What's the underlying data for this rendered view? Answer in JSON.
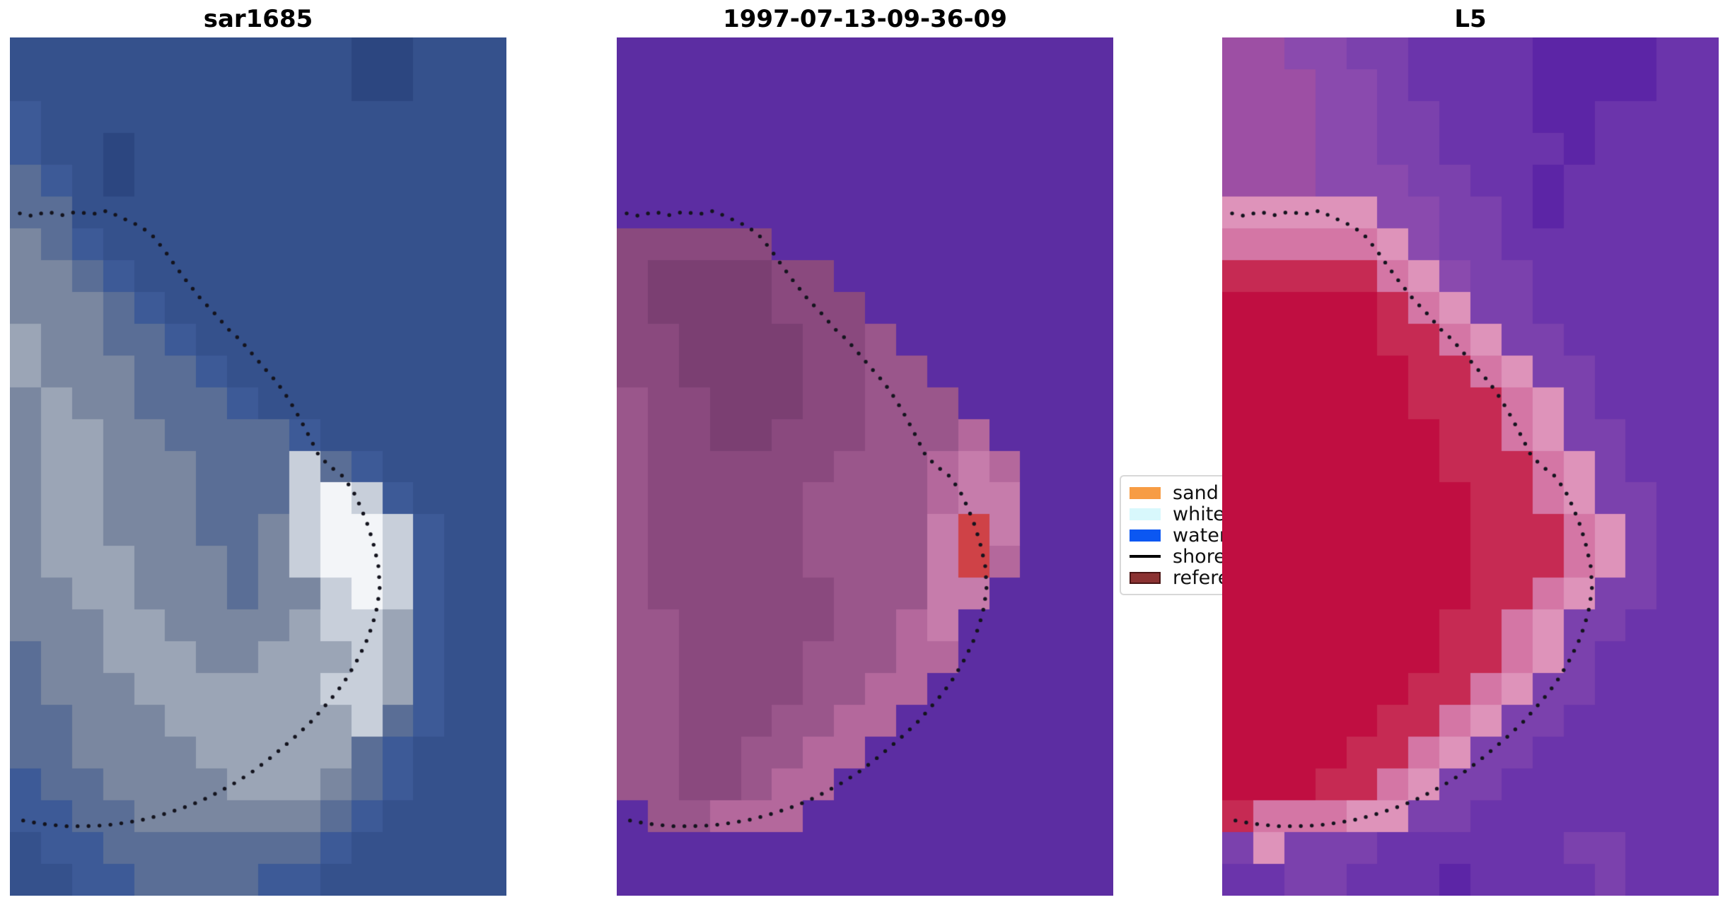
{
  "figure": {
    "background": "#ffffff",
    "shoreline_dot_color": "#14141e",
    "shoreline_dot_radius": 2.7,
    "shoreline_dot_spacing": 15.5
  },
  "legend": {
    "entries": [
      {
        "label": "sand",
        "type": "patch",
        "color": "#f79c44"
      },
      {
        "label": "whitewater",
        "type": "patch",
        "color": "#d8f8fc"
      },
      {
        "label": "water",
        "type": "patch",
        "color": "#0b57f2"
      },
      {
        "label": "shoreline",
        "type": "line",
        "color": "#000000"
      },
      {
        "label": "reference",
        "type": "patch",
        "color": "#8b3232",
        "border": "#4a1515"
      }
    ]
  },
  "shoreline": {
    "style": "dotted",
    "color": "#14141e",
    "points": [
      [
        0.02,
        0.205
      ],
      [
        0.045,
        0.208
      ],
      [
        0.075,
        0.203
      ],
      [
        0.105,
        0.207
      ],
      [
        0.135,
        0.203
      ],
      [
        0.165,
        0.206
      ],
      [
        0.195,
        0.202
      ],
      [
        0.225,
        0.21
      ],
      [
        0.255,
        0.218
      ],
      [
        0.283,
        0.228
      ],
      [
        0.31,
        0.247
      ],
      [
        0.333,
        0.266
      ],
      [
        0.356,
        0.284
      ],
      [
        0.385,
        0.305
      ],
      [
        0.413,
        0.322
      ],
      [
        0.44,
        0.34
      ],
      [
        0.463,
        0.352
      ],
      [
        0.487,
        0.368
      ],
      [
        0.512,
        0.385
      ],
      [
        0.538,
        0.402
      ],
      [
        0.562,
        0.422
      ],
      [
        0.583,
        0.443
      ],
      [
        0.603,
        0.465
      ],
      [
        0.622,
        0.487
      ],
      [
        0.645,
        0.5
      ],
      [
        0.668,
        0.51
      ],
      [
        0.69,
        0.527
      ],
      [
        0.707,
        0.548
      ],
      [
        0.722,
        0.57
      ],
      [
        0.733,
        0.592
      ],
      [
        0.742,
        0.615
      ],
      [
        0.745,
        0.64
      ],
      [
        0.74,
        0.663
      ],
      [
        0.73,
        0.685
      ],
      [
        0.717,
        0.705
      ],
      [
        0.7,
        0.725
      ],
      [
        0.68,
        0.745
      ],
      [
        0.658,
        0.763
      ],
      [
        0.633,
        0.78
      ],
      [
        0.607,
        0.797
      ],
      [
        0.578,
        0.813
      ],
      [
        0.548,
        0.828
      ],
      [
        0.517,
        0.843
      ],
      [
        0.485,
        0.857
      ],
      [
        0.452,
        0.869
      ],
      [
        0.418,
        0.88
      ],
      [
        0.383,
        0.89
      ],
      [
        0.347,
        0.898
      ],
      [
        0.31,
        0.905
      ],
      [
        0.272,
        0.911
      ],
      [
        0.233,
        0.915
      ],
      [
        0.193,
        0.918
      ],
      [
        0.153,
        0.919
      ],
      [
        0.113,
        0.919
      ],
      [
        0.075,
        0.917
      ],
      [
        0.04,
        0.914
      ],
      [
        0.015,
        0.911
      ]
    ]
  },
  "chart_data": [
    {
      "type": "heatmap",
      "title": "sar1685",
      "description": "pixelated SAR backscatter image, blue water with gray/white land blob, dotted shoreline overlay",
      "grid_cols": 16,
      "grid_rows": 27,
      "palette": {
        "a": "#2c4680",
        "b": "#35518c",
        "c": "#3d5a97",
        "d": "#5a6e96",
        "e": "#7a87a0",
        "f": "#9ba5b6",
        "g": "#c8cfda",
        "h": "#f3f5f8"
      },
      "rows": [
        "bbbbbbbbbbbaabbb",
        "bbbbbbbbbbbaabbb",
        "cbbbbbbbbbbbbbbb",
        "cbbabbbbbbbbbbbb",
        "dcbabbbbbbbbbbbb",
        "ddbbbbbbbbbbbbbb",
        "edcbbbbbbbbbbbbb",
        "eedcbbbbbbbbbbbb",
        "eeedcbbbbbbbbbbb",
        "feeddcbbbbbbbbbb",
        "feeeddcbbbbbbbbb",
        "efeedddcbbbbbbbb",
        "effeeddddcbbbbbb",
        "effeeedddgdcbbbb",
        "effeeedddghgcbbb",
        "effeeeddeghhgcbb",
        "efffeeedeghhgcbb",
        "eeffeeedeeghgcbb",
        "eeeffeeeefggfcbb",
        "deefffeefffgfcbb",
        "deeeffffffggfcbb",
        "ddeeeffffffgdcbb",
        "ddeeeefffffdcbbb",
        "cddeeeefffedcbbb",
        "ccddeeeeeedcbbbb",
        "bccdddddddcbbbbb",
        "bbccddddccbbbbbb"
      ]
    },
    {
      "type": "heatmap",
      "title": "1997-07-13-09-36-09",
      "description": "classified image: purple water, maroon/pink stepped land blob, small red patch, dotted shoreline overlay",
      "grid_cols": 16,
      "grid_rows": 27,
      "palette": {
        "p": "#5c2da2",
        "m": "#7b3f72",
        "n": "#8a497e",
        "o": "#9a568b",
        "r": "#b4689c",
        "s": "#c67cab",
        "t": "#cf4247"
      },
      "rows": [
        "pppppppppppppppp",
        "pppppppppppppppp",
        "pppppppppppppppp",
        "pppppppppppppppp",
        "pppppppppppppppp",
        "pppppppppppppppp",
        "nnnnnppppppppppp",
        "nmmmmnnppppppppp",
        "nmmmmnnnpppppppp",
        "nnmmmmnnoppppppp",
        "nnmmmmnnoopppppp",
        "onnmmmnnoooppppp",
        "onnmmnnnooorpppp",
        "onnnnnnooorsrppp",
        "onnnnnoooorssppp",
        "onnnnnoooostsppp",
        "onnnnnoooostrppp",
        "onnnnnnooosspppp",
        "oonnnnnoorsppppp",
        "oonnnnooorrppppp",
        "oonnnnoorrpppppp",
        "oonnnoorrppppppp",
        "oonnoorrpppppppp",
        "oonnorrppppppppp",
        "poorrrpppppppppp",
        "pppppppppppppppp",
        "pppppppppppppppp"
      ]
    },
    {
      "type": "heatmap",
      "title": "L5",
      "description": "Landsat 5 false-color image: purple/magenta background, crimson land blob with pink rim, dotted shoreline overlay",
      "grid_cols": 16,
      "grid_rows": 27,
      "palette": {
        "A": "#5c25a6",
        "B": "#6b34ab",
        "C": "#7b41ad",
        "D": "#8a4aae",
        "E": "#9d4fa4",
        "R": "#c00e41",
        "S": "#c62a53",
        "P": "#d476a5",
        "Q": "#de93ba"
      },
      "rows": [
        "EEDDCCBBBBAAAABB",
        "EEEDDCBBBBAAAABB",
        "EEEDDCCBBBAABBBB",
        "EEEDDCCBBBBABBBB",
        "EEEDDDCCBBABBBBB",
        "QQQQQDDCCBABBBBB",
        "PPPPPQDCCBBBBBBB",
        "SSSSSPQDCCBBBBBB",
        "RRRRRSPQCCBBBBBB",
        "RRRRRSSPQCCBBBBB",
        "RRRRRRSSPQCCBBBB",
        "RRRRRRSSSPQCBBBB",
        "RRRRRRRSSPQCCBBB",
        "RRRRRRRSSSPQCBBB",
        "RRRRRRRRSSPQCCBB",
        "RRRRRRRRSSSPQCBB",
        "RRRRRRRRSSSPQCBB",
        "RRRRRRRRSSPQCCBB",
        "RRRRRRRSSPQCCBBB",
        "RRRRRRRSSPQCBBBB",
        "RRRRRRSSPQCCBBBB",
        "RRRRRSSPQCCBBBBB",
        "RRRRSSPQCCBBBBBB",
        "RRRSSPQCCBBBBBBB",
        "SPPPQQCCBBBBBBBB",
        "CQCCCBBBBBBCCBBB",
        "BBCCBBBABBBBCBBB"
      ]
    }
  ]
}
